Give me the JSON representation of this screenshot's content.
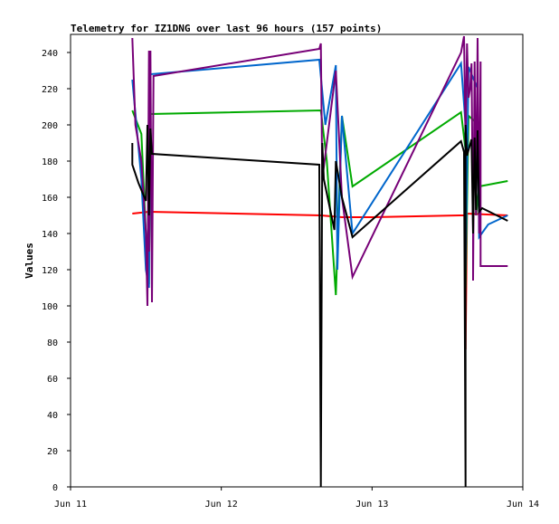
{
  "chart_data": {
    "type": "line",
    "title": "Telemetry for IZ1DNG over last 96 hours (157 points)",
    "xlabel": "",
    "ylabel": "Values",
    "ylim": [
      0,
      250
    ],
    "yticks": [
      0,
      20,
      40,
      60,
      80,
      100,
      120,
      140,
      160,
      180,
      200,
      220,
      240
    ],
    "xlim": [
      0,
      3
    ],
    "xticks": [
      {
        "value": 0,
        "label": "Jun 11"
      },
      {
        "value": 1,
        "label": "Jun 12"
      },
      {
        "value": 2,
        "label": "Jun 13"
      },
      {
        "value": 3,
        "label": "Jun 14"
      }
    ],
    "grid": false,
    "series": [
      {
        "color": "#ff0000",
        "points": [
          [
            0.41,
            151
          ],
          [
            0.52,
            152
          ],
          [
            1.66,
            150
          ],
          [
            1.8,
            149
          ],
          [
            2.0,
            149
          ],
          [
            2.58,
            150
          ],
          [
            2.62,
            150
          ],
          [
            2.62,
            76
          ],
          [
            2.63,
            151
          ],
          [
            2.9,
            150
          ]
        ]
      },
      {
        "color": "#00aa00",
        "points": [
          [
            0.41,
            208
          ],
          [
            0.47,
            195
          ],
          [
            0.5,
            140
          ],
          [
            0.52,
            112
          ],
          [
            0.53,
            206
          ],
          [
            1.66,
            208
          ],
          [
            1.7,
            180
          ],
          [
            1.76,
            106
          ],
          [
            1.8,
            205
          ],
          [
            1.87,
            166
          ],
          [
            2.59,
            207
          ],
          [
            2.62,
            186
          ],
          [
            2.62,
            110
          ],
          [
            2.64,
            205
          ],
          [
            2.68,
            202
          ],
          [
            2.69,
            150
          ],
          [
            2.71,
            166
          ],
          [
            2.9,
            169
          ]
        ]
      },
      {
        "color": "#0066cc",
        "points": [
          [
            0.41,
            225
          ],
          [
            0.47,
            170
          ],
          [
            0.5,
            120
          ],
          [
            0.52,
            110
          ],
          [
            0.53,
            228
          ],
          [
            1.65,
            236
          ],
          [
            1.69,
            200
          ],
          [
            1.76,
            233
          ],
          [
            1.77,
            120
          ],
          [
            1.8,
            205
          ],
          [
            1.87,
            140
          ],
          [
            2.59,
            234
          ],
          [
            2.62,
            200
          ],
          [
            2.62,
            120
          ],
          [
            2.64,
            232
          ],
          [
            2.7,
            220
          ],
          [
            2.71,
            138
          ],
          [
            2.77,
            145
          ],
          [
            2.9,
            150
          ]
        ]
      },
      {
        "color": "#770077",
        "points": [
          [
            0.41,
            248
          ],
          [
            0.43,
            200
          ],
          [
            0.47,
            180
          ],
          [
            0.5,
            140
          ],
          [
            0.51,
            100
          ],
          [
            0.52,
            241
          ],
          [
            0.52,
            130
          ],
          [
            0.53,
            241
          ],
          [
            0.54,
            102
          ],
          [
            0.55,
            227
          ],
          [
            1.65,
            242
          ],
          [
            1.66,
            245
          ],
          [
            1.67,
            170
          ],
          [
            1.76,
            230
          ],
          [
            1.8,
            160
          ],
          [
            1.87,
            116
          ],
          [
            2.59,
            240
          ],
          [
            2.61,
            249
          ],
          [
            2.62,
            190
          ],
          [
            2.63,
            245
          ],
          [
            2.64,
            215
          ],
          [
            2.65,
            220
          ],
          [
            2.66,
            234
          ],
          [
            2.67,
            140
          ],
          [
            2.67,
            114
          ],
          [
            2.68,
            235
          ],
          [
            2.69,
            150
          ],
          [
            2.7,
            248
          ],
          [
            2.71,
            140
          ],
          [
            2.72,
            235
          ],
          [
            2.72,
            122
          ],
          [
            2.9,
            122
          ]
        ]
      },
      {
        "color": "#000000",
        "points": [
          [
            0.41,
            190
          ],
          [
            0.41,
            178
          ],
          [
            0.45,
            168
          ],
          [
            0.5,
            158
          ],
          [
            0.51,
            200
          ],
          [
            0.52,
            150
          ],
          [
            0.53,
            198
          ],
          [
            0.54,
            184
          ],
          [
            1.65,
            178
          ],
          [
            1.66,
            0
          ],
          [
            1.67,
            190
          ],
          [
            1.68,
            170
          ],
          [
            1.75,
            142
          ],
          [
            1.76,
            180
          ],
          [
            1.8,
            160
          ],
          [
            1.87,
            138
          ],
          [
            2.59,
            191
          ],
          [
            2.61,
            185
          ],
          [
            2.62,
            0
          ],
          [
            2.62,
            200
          ],
          [
            2.63,
            183
          ],
          [
            2.66,
            192
          ],
          [
            2.67,
            140
          ],
          [
            2.68,
            193
          ],
          [
            2.69,
            153
          ],
          [
            2.7,
            197
          ],
          [
            2.71,
            152
          ],
          [
            2.73,
            154
          ],
          [
            2.9,
            147
          ]
        ]
      }
    ]
  }
}
